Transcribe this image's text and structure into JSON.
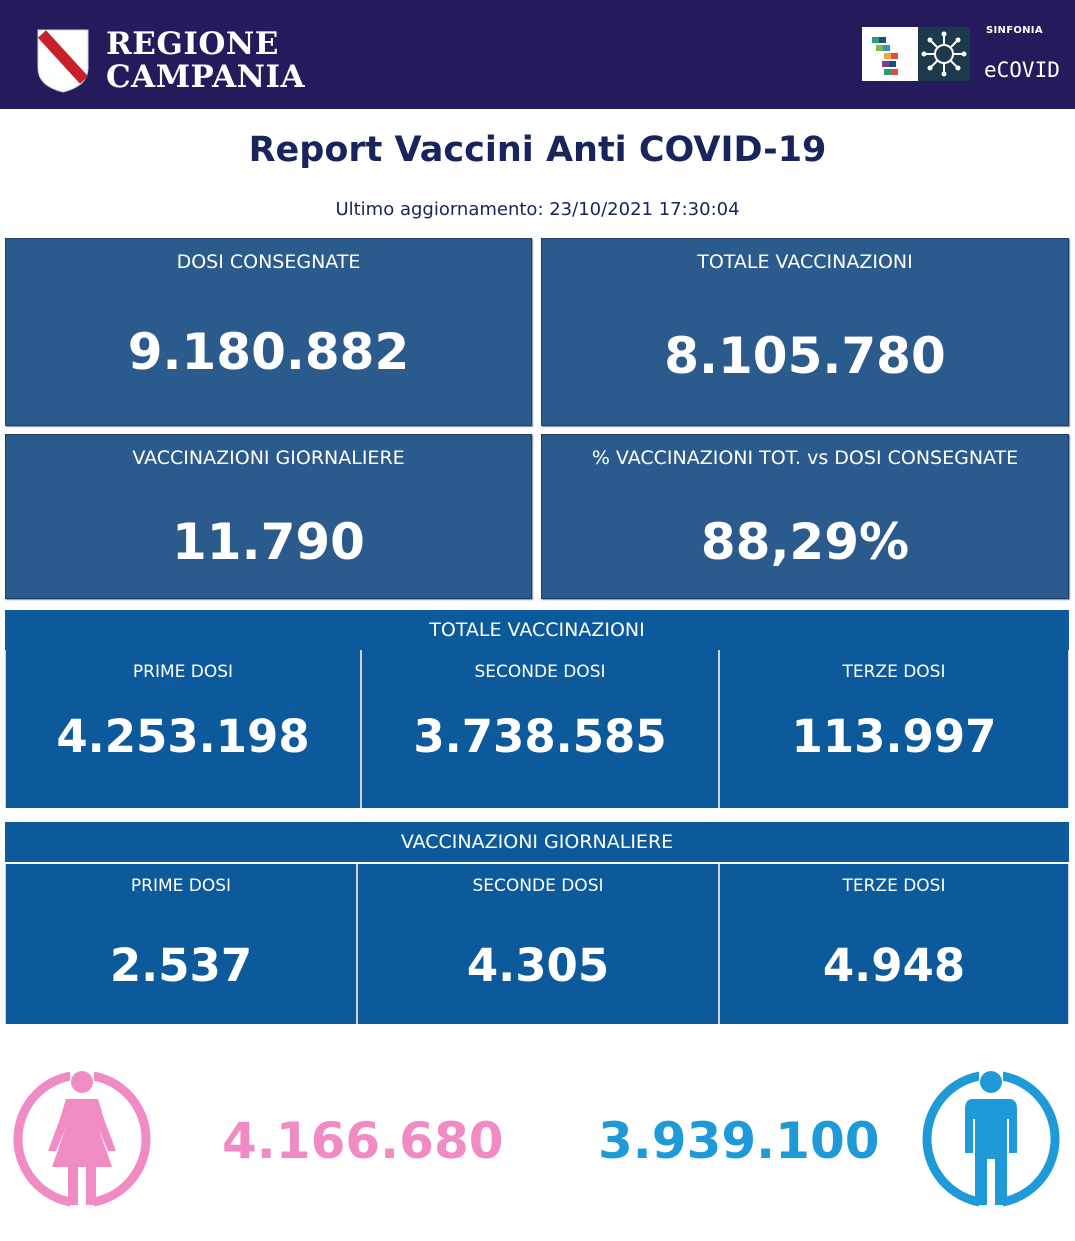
{
  "header": {
    "region_line1": "REGIONE",
    "region_line2": "CAMPANIA",
    "brand_small": "SINFONIA",
    "brand_name": "eCOVID"
  },
  "report": {
    "title": "Report Vaccini Anti COVID-19",
    "updated": "Ultimo aggiornamento: 23/10/2021  17:30:04"
  },
  "kpis": [
    {
      "label": "DOSI  CONSEGNATE",
      "value": "9.180.882"
    },
    {
      "label": "TOTALE VACCINAZIONI",
      "value": "8.105.780"
    },
    {
      "label": "VACCINAZIONI GIORNALIERE",
      "value": "11.790"
    },
    {
      "label": "% VACCINAZIONI TOT. vs DOSI CONSEGNATE",
      "value": "88,29%"
    }
  ],
  "totale_vaccinazioni": {
    "heading": "TOTALE VACCINAZIONI",
    "cells": [
      {
        "label": "PRIME DOSI",
        "value": "4.253.198"
      },
      {
        "label": "SECONDE DOSI",
        "value": "3.738.585"
      },
      {
        "label": "TERZE DOSI",
        "value": "113.997"
      }
    ]
  },
  "vaccinazioni_giornaliere": {
    "heading": "VACCINAZIONI GIORNALIERE",
    "cells": [
      {
        "label": "PRIME DOSI",
        "value": "2.537"
      },
      {
        "label": "SECONDE DOSI",
        "value": "4.305"
      },
      {
        "label": "TERZE DOSI",
        "value": "4.948"
      }
    ]
  },
  "gender": {
    "female_value": "4.166.680",
    "male_value": "3.939.100",
    "female_color": "#f08bc4",
    "male_color": "#1f9ad8"
  },
  "icons": [
    "campania-crest-icon",
    "sinfonia-logo-icon",
    "virus-icon",
    "female-icon",
    "male-icon"
  ],
  "colors": {
    "header_bg": "#241b5c",
    "kpi_bg": "#2b5b8c",
    "table_bg": "#0c5a9c",
    "title": "#17255c"
  }
}
